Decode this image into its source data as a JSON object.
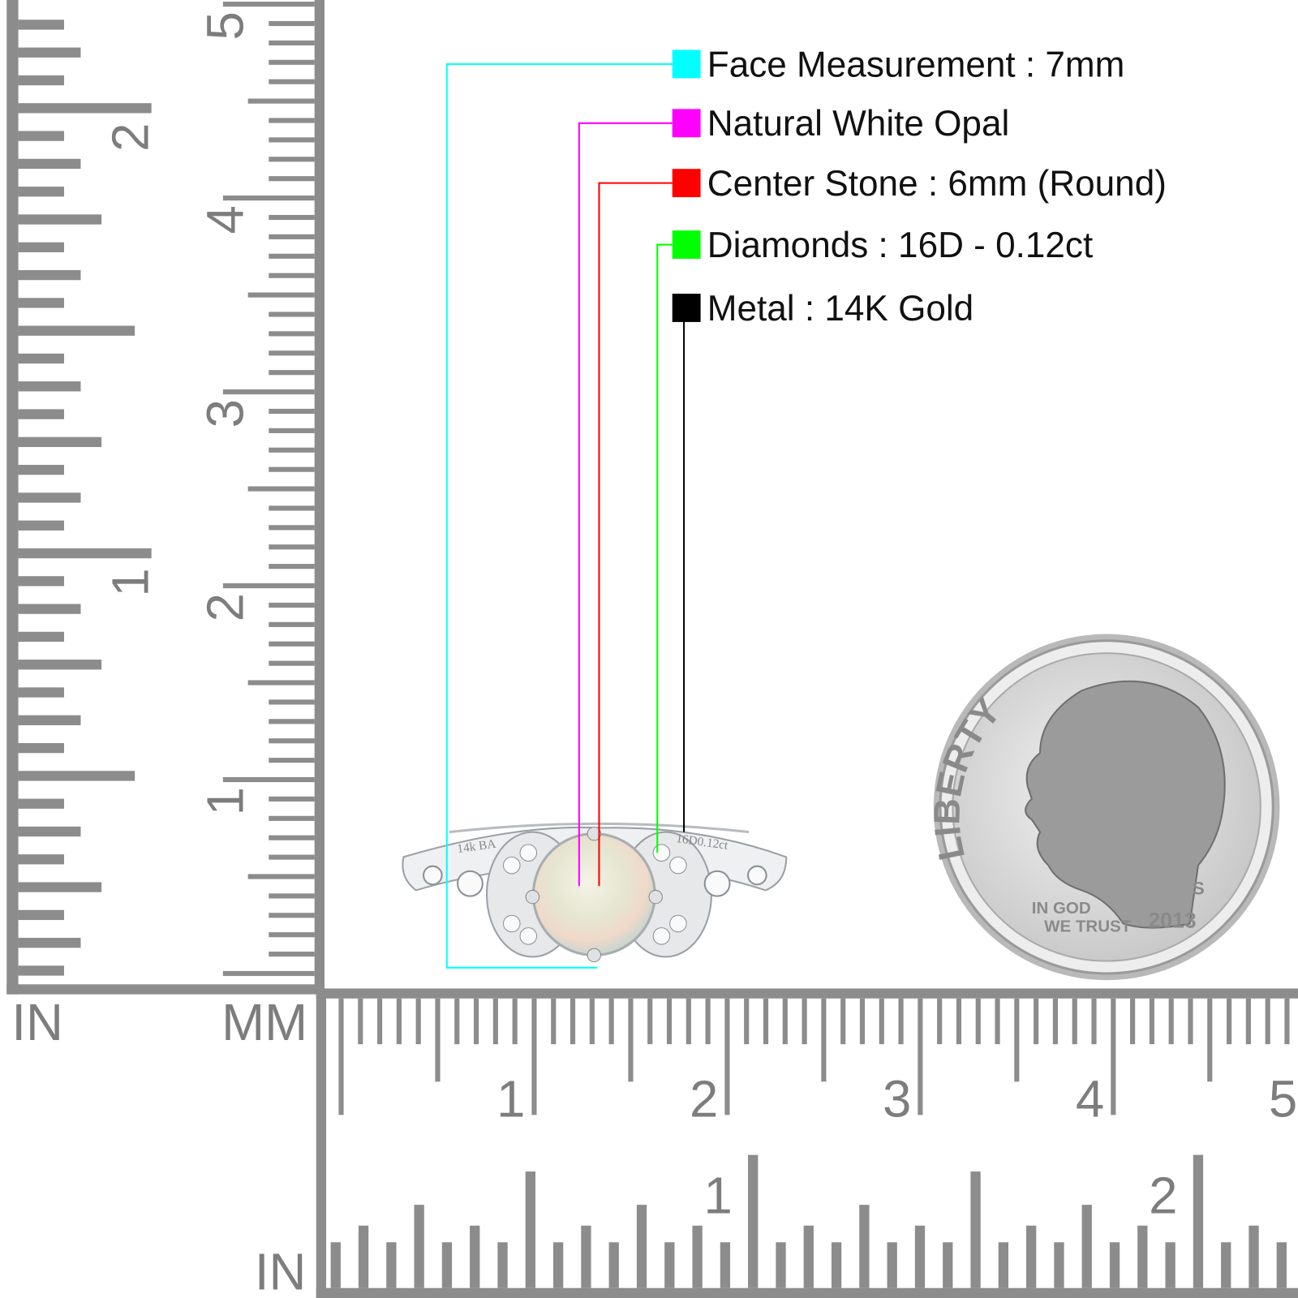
{
  "legend": [
    {
      "label": "Face Measurement : 7mm",
      "color": "#00ffff"
    },
    {
      "label": "Natural White Opal",
      "color": "#ff00ff"
    },
    {
      "label": "Center Stone : 6mm (Round)",
      "color": "#ff0000"
    },
    {
      "label": "Diamonds : 16D - 0.12ct",
      "color": "#00ff00"
    },
    {
      "label": "Metal : 14K Gold",
      "color": "#000000"
    }
  ],
  "ruler_vertical": {
    "in_label": "IN",
    "mm_label": "MM",
    "cm_numbers": [
      "1",
      "2",
      "3",
      "4",
      "5"
    ],
    "inch_numbers": [
      "1",
      "2"
    ]
  },
  "ruler_horizontal": {
    "in_label": "IN",
    "cm_numbers": [
      "1",
      "2",
      "3",
      "4",
      "5"
    ],
    "inch_numbers": [
      "1",
      "2"
    ]
  },
  "ring": {
    "engraving_left": "14k BA",
    "engraving_right": "16D0.12ct"
  },
  "coin": {
    "motto": "LIBERTY",
    "trust_1": "IN GOD",
    "trust_2": "WE TRUST",
    "year": "2013",
    "mint_mark": "S"
  }
}
